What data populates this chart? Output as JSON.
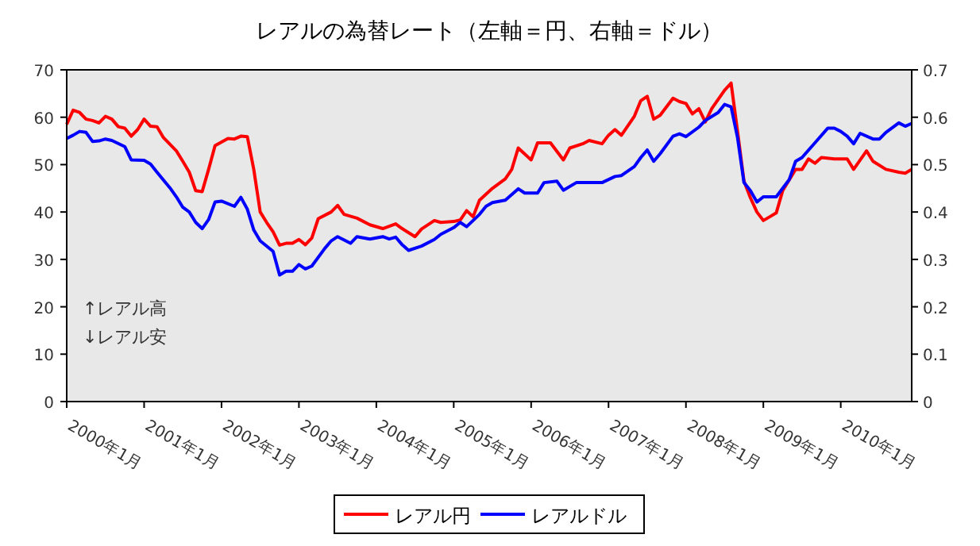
{
  "chart_data": {
    "type": "line",
    "title": "レアルの為替レート（左軸＝円、右軸＝ドル）",
    "xlim": [
      "2000-01",
      "2010-12"
    ],
    "xticks": [
      {
        "value": "2000-01",
        "label": "2000年1月"
      },
      {
        "value": "2001-01",
        "label": "2001年1月"
      },
      {
        "value": "2002-01",
        "label": "2002年1月"
      },
      {
        "value": "2003-01",
        "label": "2003年1月"
      },
      {
        "value": "2004-01",
        "label": "2004年1月"
      },
      {
        "value": "2005-01",
        "label": "2005年1月"
      },
      {
        "value": "2006-01",
        "label": "2006年1月"
      },
      {
        "value": "2007-01",
        "label": "2007年1月"
      },
      {
        "value": "2008-01",
        "label": "2008年1月"
      },
      {
        "value": "2009-01",
        "label": "2009年1月"
      },
      {
        "value": "2010-01",
        "label": "2010年1月"
      }
    ],
    "ylim": [
      0,
      70
    ],
    "yticks": [
      0,
      10,
      20,
      30,
      40,
      50,
      60,
      70
    ],
    "y2lim": [
      0,
      0.7
    ],
    "y2ticks": [
      0,
      0.1,
      0.2,
      0.3,
      0.4,
      0.5,
      0.6,
      0.7
    ],
    "legend": "bottom",
    "annotations": [
      "↑レアル高",
      "↓レアル安"
    ],
    "series": [
      {
        "name": "レアル円",
        "color": "#ff0000",
        "x": [
          "2000-01",
          "2000-02",
          "2000-03",
          "2000-04",
          "2000-05",
          "2000-06",
          "2000-07",
          "2000-08",
          "2000-09",
          "2000-10",
          "2000-11",
          "2000-12",
          "2001-01",
          "2001-02",
          "2001-03",
          "2001-04",
          "2001-06",
          "2001-07",
          "2001-08",
          "2001-09",
          "2001-10",
          "2001-11",
          "2001-12",
          "2002-02",
          "2002-03",
          "2002-04",
          "2002-05",
          "2002-06",
          "2002-07",
          "2002-08",
          "2002-09",
          "2002-10",
          "2002-11",
          "2002-12",
          "2003-01",
          "2003-02",
          "2003-03",
          "2003-04",
          "2003-06",
          "2003-07",
          "2003-08",
          "2003-10",
          "2003-12",
          "2004-02",
          "2004-04",
          "2004-05",
          "2004-07",
          "2004-08",
          "2004-10",
          "2004-11",
          "2005-01",
          "2005-02",
          "2005-03",
          "2005-04",
          "2005-05",
          "2005-07",
          "2005-09",
          "2005-10",
          "2005-11",
          "2006-01",
          "2006-02",
          "2006-04",
          "2006-06",
          "2006-07",
          "2006-09",
          "2006-10",
          "2006-12",
          "2007-01",
          "2007-02",
          "2007-03",
          "2007-05",
          "2007-06",
          "2007-07",
          "2007-08",
          "2007-09",
          "2007-11",
          "2007-12",
          "2008-01",
          "2008-02",
          "2008-03",
          "2008-04",
          "2008-05",
          "2008-07",
          "2008-08",
          "2008-09",
          "2008-10",
          "2008-11",
          "2008-12",
          "2009-01",
          "2009-02",
          "2009-03",
          "2009-04",
          "2009-06",
          "2009-07",
          "2009-08",
          "2009-09",
          "2009-10",
          "2009-12",
          "2010-02",
          "2010-03",
          "2010-05",
          "2010-06",
          "2010-08",
          "2010-10",
          "2010-11",
          "2010-12"
        ],
        "values": [
          58.5,
          61.5,
          61,
          59.6,
          59.3,
          58.8,
          60.2,
          59.6,
          58,
          57.7,
          56,
          57.4,
          59.6,
          58.1,
          58,
          55.7,
          52.9,
          50.7,
          48.4,
          44.5,
          44.3,
          49,
          54,
          55.5,
          55.4,
          56,
          55.9,
          49,
          40,
          37.8,
          35.8,
          33,
          33.4,
          33.4,
          34.2,
          33.1,
          34.5,
          38.6,
          40,
          41.4,
          39.5,
          38.7,
          37.3,
          36.5,
          37.5,
          36.5,
          34.8,
          36.4,
          38.2,
          37.8,
          38,
          38.3,
          40.3,
          39,
          42.5,
          45,
          47,
          49,
          53.5,
          51,
          54.6,
          54.6,
          51,
          53.5,
          54.4,
          55.1,
          54.4,
          56.2,
          57.4,
          56.2,
          60.2,
          63.5,
          64.4,
          59.6,
          60.4,
          64,
          63.3,
          62.9,
          60.7,
          61.8,
          59,
          61.8,
          65.7,
          67.2,
          57,
          46.5,
          43,
          40,
          38.2,
          39,
          39.8,
          44.5,
          49,
          49,
          51.2,
          50.3,
          51.5,
          51.2,
          51.2,
          49,
          52.9,
          50.7,
          49,
          48.4,
          48.2,
          49
        ]
      },
      {
        "name": "レアルドル",
        "color": "#0000ff",
        "axis": "y2",
        "x": [
          "2000-01",
          "2000-02",
          "2000-03",
          "2000-04",
          "2000-05",
          "2000-06",
          "2000-07",
          "2000-08",
          "2000-10",
          "2000-11",
          "2001-01",
          "2001-02",
          "2001-03",
          "2001-05",
          "2001-06",
          "2001-07",
          "2001-08",
          "2001-09",
          "2001-10",
          "2001-11",
          "2001-12",
          "2002-01",
          "2002-03",
          "2002-04",
          "2002-05",
          "2002-06",
          "2002-07",
          "2002-09",
          "2002-10",
          "2002-11",
          "2002-12",
          "2003-01",
          "2003-02",
          "2003-03",
          "2003-05",
          "2003-06",
          "2003-07",
          "2003-09",
          "2003-10",
          "2003-12",
          "2004-02",
          "2004-03",
          "2004-04",
          "2004-05",
          "2004-06",
          "2004-08",
          "2004-10",
          "2004-11",
          "2005-01",
          "2005-02",
          "2005-03",
          "2005-05",
          "2005-06",
          "2005-07",
          "2005-09",
          "2005-11",
          "2005-12",
          "2006-02",
          "2006-03",
          "2006-05",
          "2006-06",
          "2006-08",
          "2006-12",
          "2007-02",
          "2007-03",
          "2007-05",
          "2007-06",
          "2007-07",
          "2007-08",
          "2007-09",
          "2007-11",
          "2007-12",
          "2008-01",
          "2008-03",
          "2008-04",
          "2008-06",
          "2008-07",
          "2008-08",
          "2008-09",
          "2008-10",
          "2008-11",
          "2008-12",
          "2009-01",
          "2009-03",
          "2009-05",
          "2009-06",
          "2009-07",
          "2009-09",
          "2009-11",
          "2009-12",
          "2010-01",
          "2010-02",
          "2010-03",
          "2010-04",
          "2010-06",
          "2010-07",
          "2010-08",
          "2010-10",
          "2010-11",
          "2010-12"
        ],
        "values": [
          0.555,
          0.562,
          0.57,
          0.568,
          0.549,
          0.55,
          0.554,
          0.551,
          0.538,
          0.51,
          0.509,
          0.501,
          0.484,
          0.451,
          0.432,
          0.41,
          0.4,
          0.378,
          0.365,
          0.384,
          0.421,
          0.423,
          0.412,
          0.431,
          0.406,
          0.362,
          0.339,
          0.317,
          0.267,
          0.275,
          0.275,
          0.289,
          0.28,
          0.286,
          0.323,
          0.339,
          0.348,
          0.334,
          0.348,
          0.343,
          0.348,
          0.343,
          0.347,
          0.331,
          0.319,
          0.328,
          0.342,
          0.353,
          0.367,
          0.378,
          0.369,
          0.395,
          0.412,
          0.42,
          0.425,
          0.449,
          0.44,
          0.44,
          0.462,
          0.465,
          0.446,
          0.462,
          0.462,
          0.475,
          0.477,
          0.496,
          0.515,
          0.531,
          0.507,
          0.523,
          0.56,
          0.565,
          0.559,
          0.579,
          0.593,
          0.61,
          0.627,
          0.622,
          0.557,
          0.462,
          0.445,
          0.421,
          0.432,
          0.432,
          0.468,
          0.507,
          0.515,
          0.546,
          0.577,
          0.577,
          0.57,
          0.56,
          0.544,
          0.566,
          0.554,
          0.554,
          0.568,
          0.588,
          0.581,
          0.587
        ]
      }
    ]
  }
}
